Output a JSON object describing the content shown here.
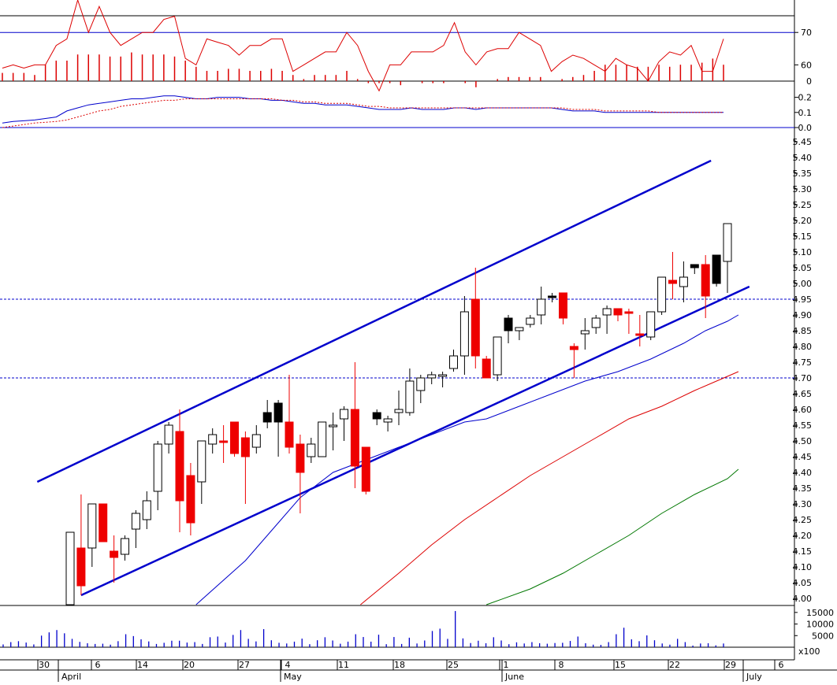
{
  "chart_data": [
    {
      "panel": "rsi",
      "type": "line",
      "y_ticks": [
        60,
        70
      ],
      "ylim": [
        55,
        80
      ],
      "reference_line": 70,
      "series": [
        {
          "color": "#dd0000",
          "values": [
            59,
            60,
            59,
            60,
            60,
            66,
            68,
            80,
            70,
            78,
            70,
            66,
            68,
            70,
            70,
            74,
            75,
            62,
            60,
            68,
            67,
            66,
            63,
            66,
            66,
            68,
            68,
            58,
            60,
            62,
            64,
            64,
            70,
            66,
            58,
            52,
            60,
            60,
            64,
            64,
            64,
            66,
            73,
            64,
            60,
            64,
            65,
            65,
            70,
            68,
            66,
            58,
            61,
            63,
            62,
            60,
            58,
            62,
            60,
            59,
            55,
            61,
            64,
            63,
            66,
            58,
            58,
            68
          ]
        }
      ]
    },
    {
      "panel": "momentum",
      "type": "bar",
      "y_ticks": [
        0
      ],
      "ylim": [
        -0.05,
        0.3
      ],
      "series": [
        {
          "color": "#dd0000",
          "values": [
            0.04,
            0.04,
            0.04,
            0.03,
            0.08,
            0.1,
            0.1,
            0.13,
            0.13,
            0.13,
            0.12,
            0.12,
            0.14,
            0.13,
            0.13,
            0.13,
            0.12,
            0.1,
            0.07,
            0.05,
            0.05,
            0.06,
            0.06,
            0.05,
            0.05,
            0.06,
            0.05,
            0.03,
            0.01,
            0.03,
            0.03,
            0.03,
            0.05,
            0.01,
            -0.01,
            -0.01,
            -0.01,
            -0.02,
            0.0,
            -0.01,
            -0.01,
            -0.01,
            0.0,
            -0.01,
            -0.03,
            0.0,
            0.01,
            0.02,
            0.02,
            0.02,
            0.02,
            0.0,
            0.01,
            0.02,
            0.03,
            0.05,
            0.08,
            0.08,
            0.08,
            0.07,
            0.07,
            0.08,
            0.07,
            0.08,
            0.08,
            0.09,
            0.11,
            0.08
          ]
        }
      ]
    },
    {
      "panel": "macd",
      "type": "line",
      "y_ticks": [
        0.0,
        0.1,
        0.2
      ],
      "ylim": [
        0,
        0.25
      ],
      "series": [
        {
          "color": "#0000cc",
          "values": [
            0.03,
            0.04,
            0.045,
            0.05,
            0.06,
            0.07,
            0.11,
            0.13,
            0.15,
            0.16,
            0.17,
            0.18,
            0.19,
            0.19,
            0.2,
            0.21,
            0.21,
            0.2,
            0.19,
            0.19,
            0.2,
            0.2,
            0.2,
            0.19,
            0.19,
            0.18,
            0.18,
            0.17,
            0.16,
            0.16,
            0.15,
            0.15,
            0.15,
            0.14,
            0.13,
            0.12,
            0.12,
            0.12,
            0.13,
            0.12,
            0.12,
            0.12,
            0.13,
            0.13,
            0.12,
            0.13,
            0.13,
            0.13,
            0.13,
            0.13,
            0.13,
            0.13,
            0.12,
            0.11,
            0.11,
            0.11,
            0.1,
            0.1,
            0.1,
            0.1,
            0.1,
            0.1,
            0.1,
            0.1,
            0.1,
            0.1,
            0.1,
            0.1
          ]
        },
        {
          "color": "#dd0000",
          "dashed": true,
          "values": [
            0.0,
            0.01,
            0.02,
            0.03,
            0.035,
            0.04,
            0.05,
            0.07,
            0.09,
            0.11,
            0.12,
            0.14,
            0.15,
            0.16,
            0.17,
            0.18,
            0.18,
            0.19,
            0.19,
            0.19,
            0.19,
            0.19,
            0.19,
            0.19,
            0.19,
            0.19,
            0.18,
            0.18,
            0.17,
            0.17,
            0.16,
            0.16,
            0.16,
            0.15,
            0.14,
            0.14,
            0.13,
            0.13,
            0.13,
            0.13,
            0.13,
            0.13,
            0.13,
            0.13,
            0.13,
            0.13,
            0.13,
            0.13,
            0.13,
            0.13,
            0.13,
            0.13,
            0.13,
            0.12,
            0.12,
            0.12,
            0.11,
            0.11,
            0.11,
            0.11,
            0.11,
            0.1,
            0.1,
            0.1,
            0.1,
            0.1,
            0.1,
            0.1
          ]
        }
      ]
    },
    {
      "panel": "price",
      "type": "candlestick",
      "ylim": [
        3.98,
        5.46
      ],
      "y_ticks": [
        4.0,
        4.05,
        4.1,
        4.15,
        4.2,
        4.25,
        4.3,
        4.35,
        4.4,
        4.45,
        4.5,
        4.55,
        4.6,
        4.65,
        4.7,
        4.75,
        4.8,
        4.85,
        4.9,
        4.95,
        5.0,
        5.05,
        5.1,
        5.15,
        5.2,
        5.25,
        5.3,
        5.35,
        5.4,
        5.45
      ],
      "candles": [
        {
          "o": 3.98,
          "h": 4.21,
          "l": 3.98,
          "c": 4.21,
          "color": "white"
        },
        {
          "o": 4.16,
          "h": 4.33,
          "l": 4.01,
          "c": 4.04,
          "color": "red"
        },
        {
          "o": 4.16,
          "h": 4.3,
          "l": 4.1,
          "c": 4.3,
          "color": "white"
        },
        {
          "o": 4.3,
          "h": 4.3,
          "l": 4.18,
          "c": 4.18,
          "color": "red"
        },
        {
          "o": 4.15,
          "h": 4.2,
          "l": 4.05,
          "c": 4.13,
          "color": "red"
        },
        {
          "o": 4.14,
          "h": 4.2,
          "l": 4.12,
          "c": 4.19,
          "color": "white"
        },
        {
          "o": 4.22,
          "h": 4.28,
          "l": 4.16,
          "c": 4.27,
          "color": "white"
        },
        {
          "o": 4.25,
          "h": 4.34,
          "l": 4.22,
          "c": 4.31,
          "color": "white"
        },
        {
          "o": 4.34,
          "h": 4.5,
          "l": 4.28,
          "c": 4.49,
          "color": "white"
        },
        {
          "o": 4.49,
          "h": 4.56,
          "l": 4.46,
          "c": 4.55,
          "color": "white"
        },
        {
          "o": 4.53,
          "h": 4.6,
          "l": 4.21,
          "c": 4.31,
          "color": "red"
        },
        {
          "o": 4.39,
          "h": 4.43,
          "l": 4.2,
          "c": 4.24,
          "color": "red"
        },
        {
          "o": 4.37,
          "h": 4.5,
          "l": 4.3,
          "c": 4.5,
          "color": "white"
        },
        {
          "o": 4.49,
          "h": 4.54,
          "l": 4.46,
          "c": 4.52,
          "color": "white"
        },
        {
          "o": 4.5,
          "h": 4.55,
          "l": 4.43,
          "c": 4.5,
          "color": "red"
        },
        {
          "o": 4.56,
          "h": 4.56,
          "l": 4.45,
          "c": 4.46,
          "color": "red"
        },
        {
          "o": 4.51,
          "h": 4.53,
          "l": 4.3,
          "c": 4.45,
          "color": "red"
        },
        {
          "o": 4.48,
          "h": 4.55,
          "l": 4.46,
          "c": 4.52,
          "color": "white"
        },
        {
          "o": 4.56,
          "h": 4.63,
          "l": 4.54,
          "c": 4.59,
          "color": "black"
        },
        {
          "o": 4.62,
          "h": 4.63,
          "l": 4.45,
          "c": 4.56,
          "color": "black"
        },
        {
          "o": 4.56,
          "h": 4.71,
          "l": 4.46,
          "c": 4.48,
          "color": "red"
        },
        {
          "o": 4.49,
          "h": 4.52,
          "l": 4.27,
          "c": 4.4,
          "color": "red"
        },
        {
          "o": 4.45,
          "h": 4.51,
          "l": 4.43,
          "c": 4.49,
          "color": "white"
        },
        {
          "o": 4.45,
          "h": 4.56,
          "l": 4.45,
          "c": 4.56,
          "color": "white"
        },
        {
          "o": 4.55,
          "h": 4.59,
          "l": 4.47,
          "c": 4.55,
          "color": "white"
        },
        {
          "o": 4.57,
          "h": 4.61,
          "l": 4.5,
          "c": 4.6,
          "color": "white"
        },
        {
          "o": 4.6,
          "h": 4.75,
          "l": 4.35,
          "c": 4.42,
          "color": "red"
        },
        {
          "o": 4.48,
          "h": 4.48,
          "l": 4.33,
          "c": 4.34,
          "color": "red"
        },
        {
          "o": 4.59,
          "h": 4.6,
          "l": 4.55,
          "c": 4.57,
          "color": "black"
        },
        {
          "o": 4.57,
          "h": 4.58,
          "l": 4.53,
          "c": 4.56,
          "color": "white"
        },
        {
          "o": 4.6,
          "h": 4.66,
          "l": 4.55,
          "c": 4.59,
          "color": "white"
        },
        {
          "o": 4.59,
          "h": 4.73,
          "l": 4.58,
          "c": 4.69,
          "color": "white"
        },
        {
          "o": 4.66,
          "h": 4.71,
          "l": 4.62,
          "c": 4.7,
          "color": "white"
        },
        {
          "o": 4.7,
          "h": 4.72,
          "l": 4.68,
          "c": 4.71,
          "color": "white"
        },
        {
          "o": 4.71,
          "h": 4.72,
          "l": 4.67,
          "c": 4.71,
          "color": "white"
        },
        {
          "o": 4.73,
          "h": 4.79,
          "l": 4.72,
          "c": 4.77,
          "color": "white"
        },
        {
          "o": 4.77,
          "h": 4.96,
          "l": 4.71,
          "c": 4.91,
          "color": "white"
        },
        {
          "o": 4.95,
          "h": 5.05,
          "l": 4.73,
          "c": 4.77,
          "color": "red"
        },
        {
          "o": 4.76,
          "h": 4.77,
          "l": 4.7,
          "c": 4.7,
          "color": "red"
        },
        {
          "o": 4.71,
          "h": 4.83,
          "l": 4.69,
          "c": 4.83,
          "color": "white"
        },
        {
          "o": 4.89,
          "h": 4.9,
          "l": 4.81,
          "c": 4.85,
          "color": "black"
        },
        {
          "o": 4.85,
          "h": 4.86,
          "l": 4.82,
          "c": 4.86,
          "color": "white"
        },
        {
          "o": 4.87,
          "h": 4.9,
          "l": 4.86,
          "c": 4.89,
          "color": "white"
        },
        {
          "o": 4.9,
          "h": 4.99,
          "l": 4.87,
          "c": 4.95,
          "color": "white"
        },
        {
          "o": 4.96,
          "h": 4.97,
          "l": 4.94,
          "c": 4.96,
          "color": "black"
        },
        {
          "o": 4.97,
          "h": 4.97,
          "l": 4.87,
          "c": 4.89,
          "color": "red"
        },
        {
          "o": 4.8,
          "h": 4.81,
          "l": 4.7,
          "c": 4.79,
          "color": "red"
        },
        {
          "o": 4.84,
          "h": 4.89,
          "l": 4.79,
          "c": 4.85,
          "color": "white"
        },
        {
          "o": 4.86,
          "h": 4.9,
          "l": 4.84,
          "c": 4.89,
          "color": "white"
        },
        {
          "o": 4.9,
          "h": 4.93,
          "l": 4.84,
          "c": 4.92,
          "color": "white"
        },
        {
          "o": 4.92,
          "h": 4.92,
          "l": 4.88,
          "c": 4.9,
          "color": "red"
        },
        {
          "o": 4.91,
          "h": 4.92,
          "l": 4.84,
          "c": 4.91,
          "color": "red"
        },
        {
          "o": 4.84,
          "h": 4.9,
          "l": 4.8,
          "c": 4.84,
          "color": "red"
        },
        {
          "o": 4.83,
          "h": 4.91,
          "l": 4.82,
          "c": 4.91,
          "color": "white"
        },
        {
          "o": 4.91,
          "h": 5.02,
          "l": 4.9,
          "c": 5.02,
          "color": "white"
        },
        {
          "o": 5.01,
          "h": 5.1,
          "l": 4.95,
          "c": 5.0,
          "color": "red"
        },
        {
          "o": 4.99,
          "h": 5.07,
          "l": 4.94,
          "c": 5.02,
          "color": "white"
        },
        {
          "o": 5.06,
          "h": 5.06,
          "l": 5.03,
          "c": 5.05,
          "color": "black"
        },
        {
          "o": 5.06,
          "h": 5.09,
          "l": 4.89,
          "c": 4.96,
          "color": "red"
        },
        {
          "o": 5.09,
          "h": 5.09,
          "l": 4.99,
          "c": 5.0,
          "color": "black"
        },
        {
          "o": 5.07,
          "h": 5.19,
          "l": 4.97,
          "c": 5.19,
          "color": "white"
        }
      ],
      "horizontal_lines": [
        4.7,
        4.95
      ],
      "channel": {
        "upper": [
          {
            "i": -3,
            "v": 4.37
          },
          {
            "i": 58.5,
            "v": 5.39
          }
        ],
        "lower": [
          {
            "i": 1,
            "v": 4.01
          },
          {
            "i": 62,
            "v": 4.99
          }
        ]
      },
      "moving_averages": [
        {
          "name": "",
          "color": "#0000cc",
          "points": [
            [
              11.5,
              3.98
            ],
            [
              16,
              4.12
            ],
            [
              19,
              4.24
            ],
            [
              21,
              4.32
            ],
            [
              24,
              4.4
            ],
            [
              27,
              4.44
            ],
            [
              30,
              4.48
            ],
            [
              33,
              4.52
            ],
            [
              36,
              4.56
            ],
            [
              38,
              4.57
            ],
            [
              41,
              4.61
            ],
            [
              44,
              4.65
            ],
            [
              47,
              4.69
            ],
            [
              50,
              4.72
            ],
            [
              53,
              4.76
            ],
            [
              56,
              4.81
            ],
            [
              58,
              4.85
            ],
            [
              60,
              4.88
            ],
            [
              61,
              4.9
            ]
          ]
        },
        {
          "name": "",
          "color": "#dd0000",
          "points": [
            [
              26.5,
              3.98
            ],
            [
              30,
              4.08
            ],
            [
              33,
              4.17
            ],
            [
              36,
              4.25
            ],
            [
              39,
              4.32
            ],
            [
              42,
              4.39
            ],
            [
              45,
              4.45
            ],
            [
              48,
              4.51
            ],
            [
              51,
              4.57
            ],
            [
              54,
              4.61
            ],
            [
              57,
              4.66
            ],
            [
              59,
              4.69
            ],
            [
              61,
              4.72
            ]
          ]
        },
        {
          "name": "",
          "color": "#007700",
          "points": [
            [
              38,
              3.98
            ],
            [
              42,
              4.03
            ],
            [
              45,
              4.08
            ],
            [
              48,
              4.14
            ],
            [
              51,
              4.2
            ],
            [
              54,
              4.27
            ],
            [
              57,
              4.33
            ],
            [
              60,
              4.38
            ],
            [
              61,
              4.41
            ]
          ]
        }
      ]
    },
    {
      "panel": "volume",
      "type": "bar",
      "y_ticks": [
        5000,
        10000,
        15000
      ],
      "y_tick_labels": [
        "5000",
        "10000",
        "15000"
      ],
      "scale_label": "x100",
      "ylim": [
        0,
        18000
      ],
      "values": [
        1200,
        2200,
        2600,
        2000,
        1200,
        5000,
        6400,
        7400,
        6000,
        3600,
        2300,
        1700,
        1400,
        1500,
        1100,
        2600,
        5600,
        4800,
        3400,
        2500,
        1400,
        1900,
        2800,
        2800,
        2000,
        2200,
        1400,
        4300,
        4600,
        2000,
        5300,
        7400,
        3600,
        2500,
        7800,
        3000,
        1900,
        1600,
        2400,
        3700,
        1300,
        3000,
        4300,
        2900,
        1500,
        2400,
        5600,
        4400,
        2400,
        5400,
        1300,
        4400,
        1400,
        4100,
        1600,
        2900,
        7000,
        8000,
        3600,
        15600,
        3800,
        1800,
        2800,
        1700,
        4300,
        2900,
        1300,
        2100,
        1600,
        2200,
        1700,
        1500,
        1800,
        1900,
        2700,
        4600,
        1700,
        1100,
        1000,
        2200,
        5600,
        8400,
        3400,
        2600,
        5100,
        3000,
        1600,
        1100,
        3600,
        2200,
        700,
        1600,
        1700,
        800,
        1600
      ]
    },
    {
      "panel": "date_axis",
      "type": "axis",
      "day_labels": [
        "30",
        "6",
        "14",
        "20",
        "27",
        "4",
        "11",
        "18",
        "25",
        "1",
        "8",
        "15",
        "22",
        "29",
        "6"
      ],
      "month_labels": [
        "April",
        "May",
        "June",
        "July"
      ]
    }
  ]
}
